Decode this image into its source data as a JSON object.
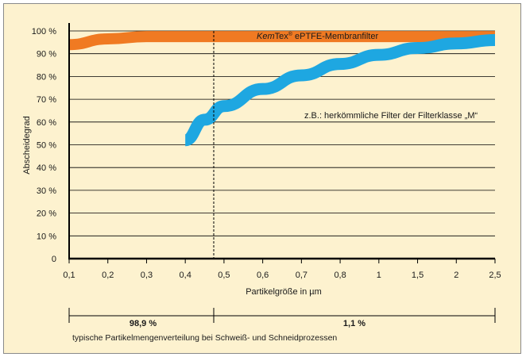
{
  "chart_data": {
    "type": "line",
    "ylabel": "Abscheidegrad",
    "xlabel": "Partikelgröße in µm",
    "ylim": [
      0,
      100
    ],
    "y_ticks": [
      "0",
      "10 %",
      "20 %",
      "30 %",
      "40 %",
      "50 %",
      "60 %",
      "70 %",
      "80 %",
      "90 %",
      "100 %"
    ],
    "x_ticks": [
      "0,1",
      "0,2",
      "0,3",
      "0,4",
      "0,5",
      "0,6",
      "0,7",
      "0,8",
      "1",
      "1,5",
      "2",
      "2,5"
    ],
    "grid": "horizontal",
    "divider_at": "0,4",
    "series": [
      {
        "name_italic": "Kem",
        "name_rest": "Tex",
        "name_suffix": "ePTFE-Membranfilter",
        "name_reg": "®",
        "color": "#f07a22",
        "points": [
          [
            0,
            94
          ],
          [
            1,
            96.5
          ],
          [
            2,
            97.5
          ],
          [
            3,
            97.5
          ],
          [
            4,
            97.5
          ],
          [
            5,
            97.5
          ],
          [
            6,
            97.5
          ],
          [
            7,
            97.5
          ],
          [
            8,
            97.5
          ],
          [
            9,
            97.5
          ],
          [
            10,
            97.5
          ],
          [
            11,
            97.5
          ]
        ]
      },
      {
        "name": "z.B.: herkömmliche Filter der Filterklasse „M“",
        "color": "#1ea7e1",
        "points": [
          [
            3,
            52
          ],
          [
            3.5,
            61
          ],
          [
            4,
            67
          ],
          [
            5,
            74.5
          ],
          [
            6,
            80.5
          ],
          [
            7,
            85.5
          ],
          [
            8,
            89.5
          ],
          [
            9,
            92.5
          ],
          [
            10,
            94.5
          ],
          [
            11,
            96
          ]
        ]
      }
    ]
  },
  "distribution": {
    "left_value": "98,9 %",
    "right_value": "1,1 %",
    "caption": "typische Partikelmengenverteilung bei Schweiß- und Schneidprozessen"
  }
}
